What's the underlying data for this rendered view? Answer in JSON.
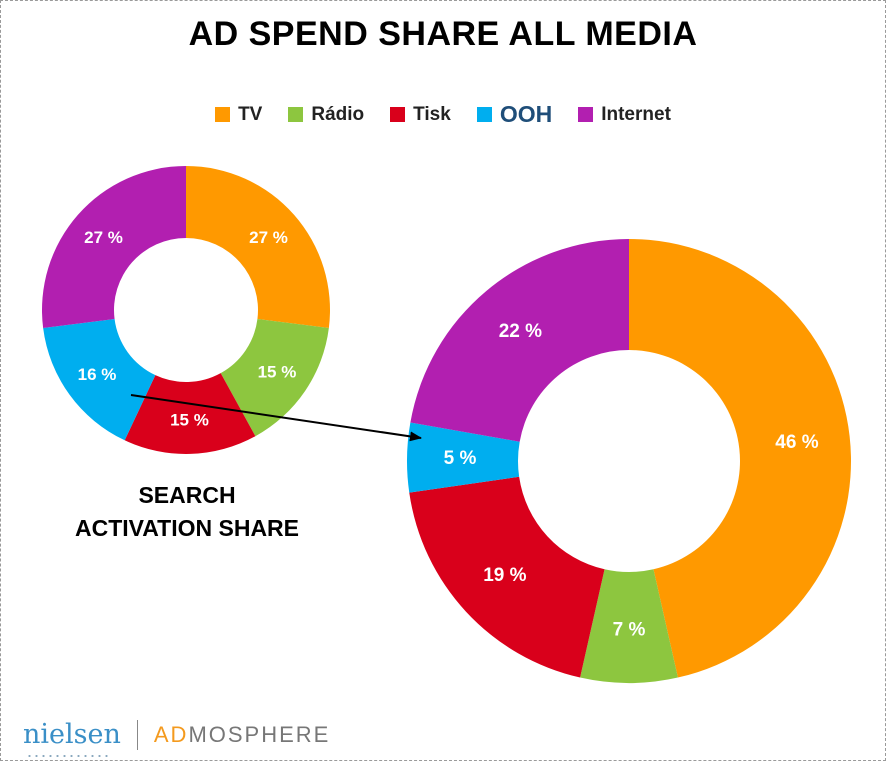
{
  "title": "AD SPEND SHARE ALL MEDIA",
  "legend": [
    {
      "label": "TV",
      "color": "#FF9900"
    },
    {
      "label": "Rádio",
      "color": "#8DC63F"
    },
    {
      "label": "Tisk",
      "color": "#D9001B"
    },
    {
      "label": "OOH",
      "color": "#00AEEF"
    },
    {
      "label": "Internet",
      "color": "#B21FB0"
    }
  ],
  "small_chart_title_line1": "SEARCH",
  "small_chart_title_line2": "ACTIVATION SHARE",
  "logos": {
    "nielsen": "nielsen",
    "admosphere_ad": "AD",
    "admosphere_rest": "MOSPHERE"
  },
  "chart_data": [
    {
      "type": "pie",
      "donut": true,
      "title": "SEARCH ACTIVATION SHARE",
      "categories": [
        "TV",
        "Rádio",
        "Tisk",
        "OOH",
        "Internet"
      ],
      "values": [
        27,
        15,
        15,
        16,
        27
      ],
      "labels": [
        "27 %",
        "15 %",
        "15 %",
        "16 %",
        "27 %"
      ],
      "colors": [
        "#FF9900",
        "#8DC63F",
        "#D9001B",
        "#00AEEF",
        "#B21FB0"
      ]
    },
    {
      "type": "pie",
      "donut": true,
      "title": "AD SPEND SHARE ALL MEDIA",
      "categories": [
        "TV",
        "Rádio",
        "Tisk",
        "OOH",
        "Internet"
      ],
      "values": [
        46,
        7,
        19,
        5,
        22
      ],
      "labels": [
        "46 %",
        "7 %",
        "19 %",
        "5 %",
        "22 %"
      ],
      "colors": [
        "#FF9900",
        "#8DC63F",
        "#D9001B",
        "#00AEEF",
        "#B21FB0"
      ]
    }
  ]
}
